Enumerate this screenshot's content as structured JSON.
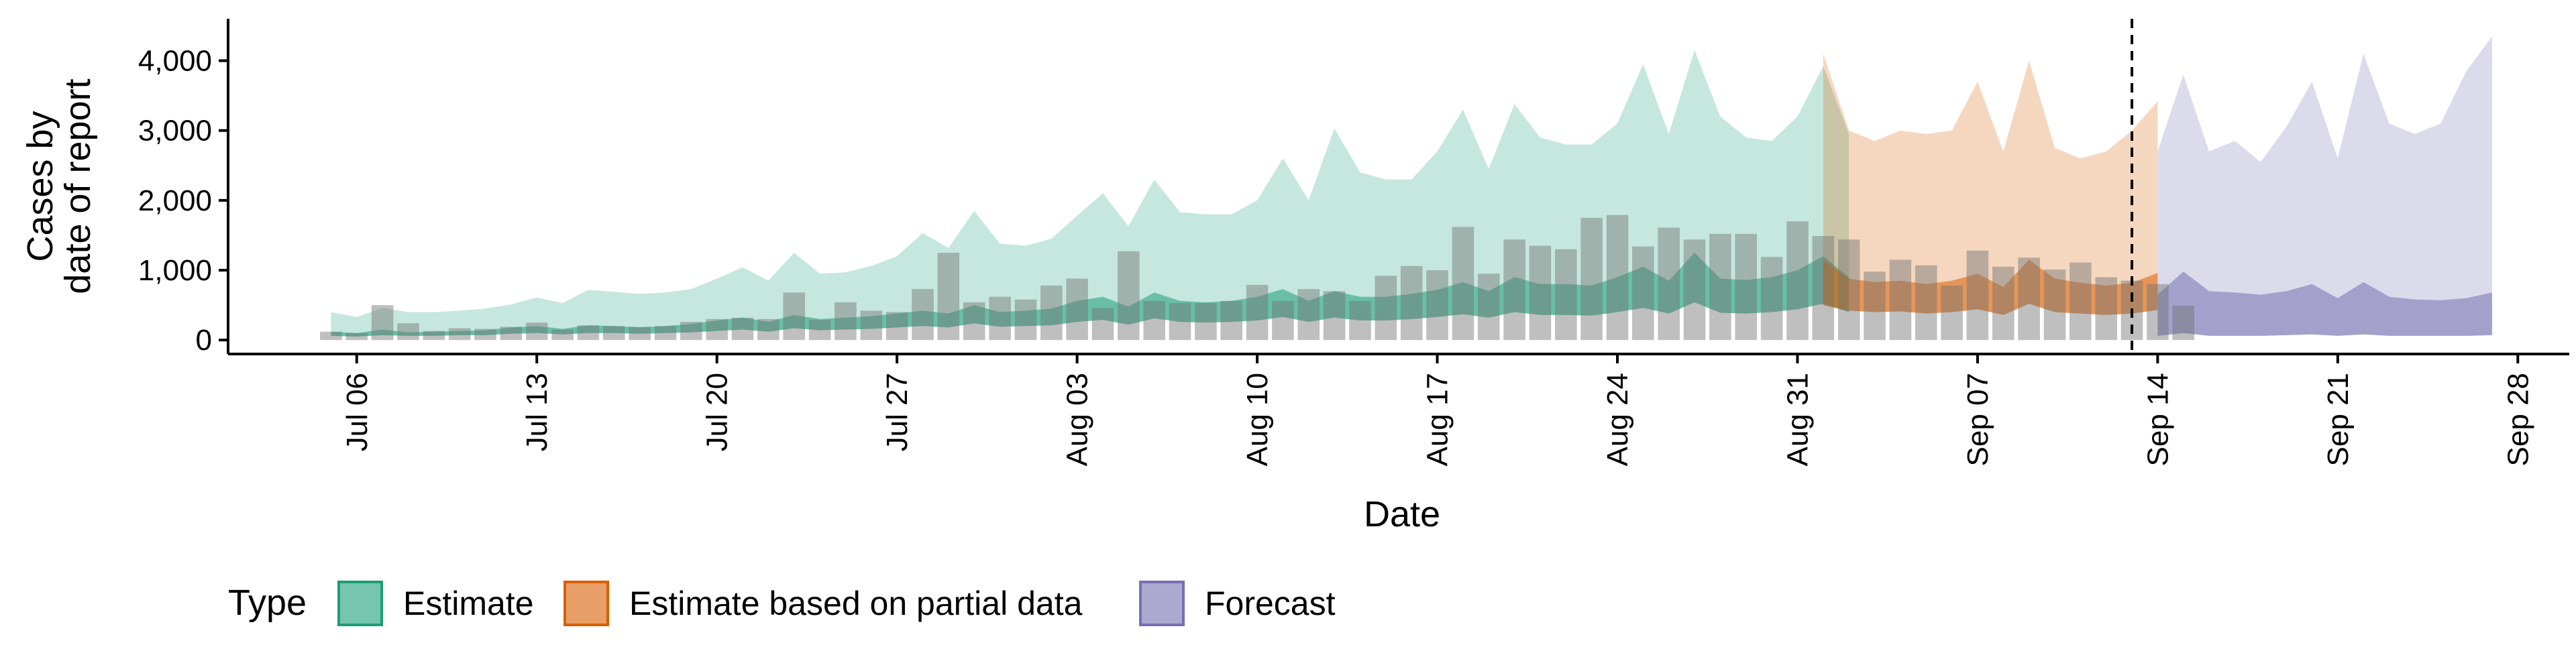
{
  "chart_data": {
    "type": "area",
    "ylabel_lines": [
      "Cases by",
      "date of report"
    ],
    "xlabel": "Date",
    "x_range": [
      "2020-07-01",
      "2020-09-30"
    ],
    "ylim": [
      -200,
      4600
    ],
    "yticks": [
      0,
      1000,
      2000,
      3000,
      4000
    ],
    "ytick_labels": [
      "0",
      "1,000",
      "2,000",
      "3,000",
      "4,000"
    ],
    "xtick_dates": [
      "2020-07-06",
      "2020-07-13",
      "2020-07-20",
      "2020-07-27",
      "2020-08-03",
      "2020-08-10",
      "2020-08-17",
      "2020-08-24",
      "2020-08-31",
      "2020-09-07",
      "2020-09-14",
      "2020-09-21",
      "2020-09-28"
    ],
    "xtick_labels": [
      "Jul 06",
      "Jul 13",
      "Jul 20",
      "Jul 27",
      "Aug 03",
      "Aug 10",
      "Aug 17",
      "Aug 24",
      "Aug 31",
      "Sep 07",
      "Sep 14",
      "Sep 21",
      "Sep 28"
    ],
    "grid": false,
    "vline_date": "2020-09-13",
    "legend": {
      "title": "Type",
      "position": "bottom",
      "items": [
        "Estimate",
        "Estimate based on partial data",
        "Forecast"
      ]
    },
    "series": [
      {
        "name": "Estimate",
        "fill": "#1b9e77",
        "start": "2020-07-05",
        "upper": [
          400,
          330,
          460,
          400,
          400,
          420,
          450,
          510,
          610,
          530,
          720,
          690,
          660,
          680,
          730,
          880,
          1040,
          850,
          1250,
          950,
          970,
          1060,
          1200,
          1530,
          1320,
          1850,
          1380,
          1350,
          1450,
          1780,
          2100,
          1630,
          2300,
          1830,
          1800,
          1800,
          2000,
          2600,
          2000,
          3030,
          2400,
          2300,
          2300,
          2700,
          3300,
          2450,
          3380,
          2900,
          2800,
          2800,
          3100,
          3950,
          2950,
          4150,
          3200,
          2900,
          2850,
          3200,
          3920,
          2950
        ],
        "median": [
          120,
          100,
          150,
          110,
          120,
          130,
          140,
          180,
          200,
          160,
          210,
          200,
          180,
          200,
          230,
          280,
          320,
          260,
          360,
          300,
          320,
          340,
          380,
          420,
          380,
          500,
          400,
          420,
          450,
          560,
          620,
          480,
          680,
          560,
          540,
          560,
          620,
          730,
          560,
          700,
          620,
          620,
          660,
          720,
          830,
          700,
          900,
          800,
          800,
          780,
          900,
          1050,
          850,
          1250,
          880,
          860,
          900,
          1000,
          1200,
          900
        ],
        "lower": [
          60,
          50,
          70,
          60,
          60,
          70,
          70,
          90,
          100,
          80,
          100,
          100,
          90,
          100,
          110,
          130,
          150,
          120,
          170,
          140,
          150,
          160,
          180,
          200,
          180,
          240,
          190,
          200,
          210,
          260,
          290,
          220,
          310,
          260,
          250,
          260,
          280,
          330,
          260,
          320,
          280,
          280,
          300,
          330,
          370,
          320,
          400,
          360,
          360,
          350,
          400,
          460,
          380,
          540,
          390,
          380,
          400,
          440,
          520,
          400
        ]
      },
      {
        "name": "Estimate based on partial data",
        "fill": "#d95f02",
        "start": "2020-09-01",
        "upper": [
          4100,
          3000,
          2850,
          3000,
          2950,
          3000,
          3700,
          2700,
          4000,
          2750,
          2600,
          2700,
          3000,
          3420
        ],
        "median": [
          1150,
          880,
          830,
          850,
          800,
          850,
          950,
          760,
          1150,
          880,
          820,
          780,
          820,
          960
        ],
        "lower": [
          500,
          420,
          400,
          410,
          380,
          400,
          440,
          360,
          520,
          400,
          380,
          360,
          380,
          430
        ]
      },
      {
        "name": "Forecast",
        "fill": "#7570b3",
        "start": "2020-09-14",
        "upper": [
          2700,
          3800,
          2700,
          2850,
          2550,
          3050,
          3700,
          2600,
          4100,
          3100,
          2950,
          3100,
          3850,
          4350
        ],
        "median": [
          650,
          980,
          700,
          680,
          650,
          700,
          800,
          600,
          830,
          620,
          580,
          570,
          600,
          680
        ],
        "lower": [
          60,
          100,
          60,
          60,
          60,
          70,
          80,
          60,
          80,
          60,
          60,
          60,
          60,
          70
        ]
      }
    ],
    "reported_cases": {
      "name": "Reported cases",
      "fill": "#707070",
      "start": "2020-07-05",
      "values": [
        120,
        100,
        500,
        240,
        130,
        170,
        160,
        190,
        250,
        150,
        210,
        200,
        190,
        200,
        260,
        300,
        320,
        300,
        680,
        290,
        540,
        420,
        400,
        730,
        1250,
        540,
        620,
        580,
        780,
        880,
        460,
        1270,
        560,
        530,
        530,
        560,
        790,
        560,
        730,
        700,
        560,
        920,
        1060,
        1000,
        1620,
        950,
        1440,
        1350,
        1300,
        1750,
        1790,
        1340,
        1610,
        1440,
        1520,
        1520,
        1190,
        1700,
        1490,
        1440,
        980,
        1150,
        1070,
        780,
        1280,
        1050,
        1180,
        1010,
        1110,
        900,
        850,
        800,
        490
      ]
    }
  }
}
